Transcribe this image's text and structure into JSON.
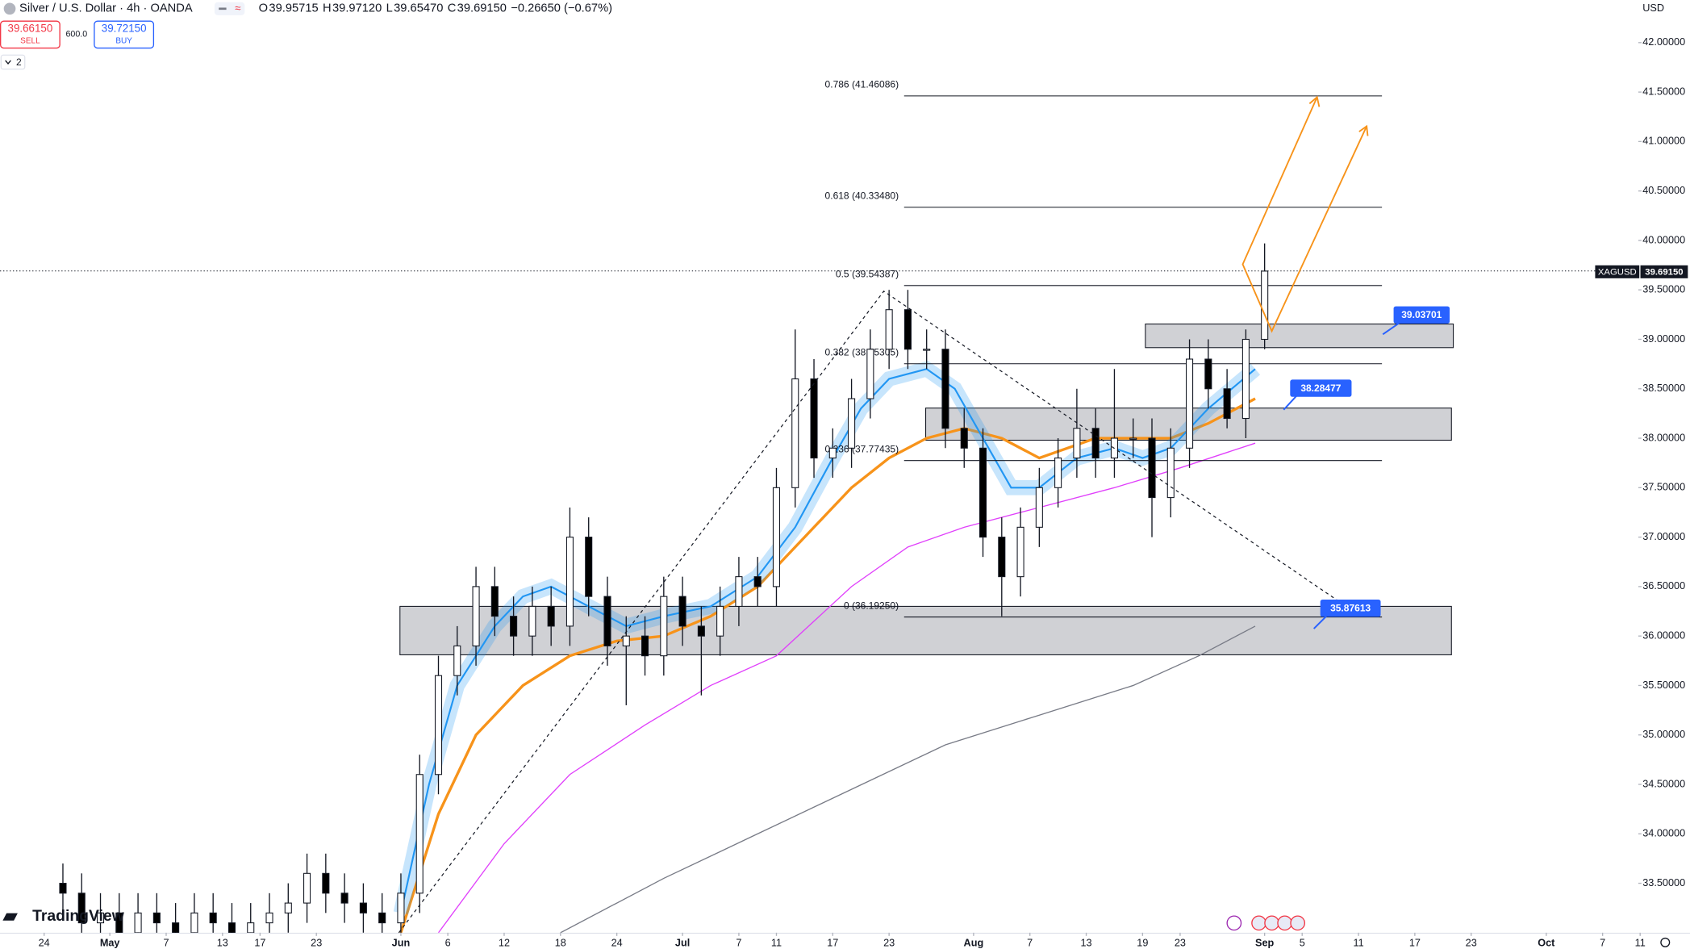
{
  "header": {
    "symbol": "Silver / U.S. Dollar · 4h · OANDA",
    "ohlc": [
      {
        "label": "O",
        "value": "39.95715"
      },
      {
        "label": "H",
        "value": "39.97120"
      },
      {
        "label": "L",
        "value": "39.65470"
      },
      {
        "label": "C",
        "value": "39.69150"
      }
    ],
    "change": "−0.26650 (−0.67%)",
    "sell_price": "39.66150",
    "sell": "SELL",
    "spread": "600.0",
    "buy_price": "39.72150",
    "buy": "BUY",
    "indicators_count": "2",
    "currency": "USD",
    "branding": "TradingView",
    "ticker": "XAGUSD",
    "last_price_label": "39.69150"
  },
  "chart_data": {
    "type": "candlestick",
    "xlim": [
      109.3,
      283.8
    ],
    "ylim": [
      33.0,
      42.43
    ],
    "xticks": [
      {
        "value": 114,
        "label": "24"
      },
      {
        "value": 121,
        "label": "May"
      },
      {
        "value": 127,
        "label": "7"
      },
      {
        "value": 133,
        "label": "13"
      },
      {
        "value": 137,
        "label": "17"
      },
      {
        "value": 143,
        "label": "23"
      },
      {
        "value": 152,
        "label": "Jun"
      },
      {
        "value": 157,
        "label": "6"
      },
      {
        "value": 163,
        "label": "12"
      },
      {
        "value": 169,
        "label": "18"
      },
      {
        "value": 175,
        "label": "24"
      },
      {
        "value": 182,
        "label": "Jul"
      },
      {
        "value": 188,
        "label": "7"
      },
      {
        "value": 192,
        "label": "11"
      },
      {
        "value": 198,
        "label": "17"
      },
      {
        "value": 204,
        "label": "23"
      },
      {
        "value": 213,
        "label": "Aug"
      },
      {
        "value": 219,
        "label": "7"
      },
      {
        "value": 225,
        "label": "13"
      },
      {
        "value": 231,
        "label": "19"
      },
      {
        "value": 235,
        "label": "23"
      },
      {
        "value": 244,
        "label": "Sep"
      },
      {
        "value": 248,
        "label": "5"
      },
      {
        "value": 254,
        "label": "11"
      },
      {
        "value": 260,
        "label": "17"
      },
      {
        "value": 266,
        "label": "23"
      },
      {
        "value": 274,
        "label": "Oct"
      },
      {
        "value": 280,
        "label": "7"
      },
      {
        "value": 284,
        "label": "11"
      }
    ],
    "yticks": [
      {
        "value": 42.0,
        "label": "42.00000"
      },
      {
        "value": 41.5,
        "label": "41.50000"
      },
      {
        "value": 41.0,
        "label": "41.00000"
      },
      {
        "value": 40.5,
        "label": "40.50000"
      },
      {
        "value": 40.0,
        "label": "40.00000"
      },
      {
        "value": 39.5,
        "label": "39.50000"
      },
      {
        "value": 39.0,
        "label": "39.00000"
      },
      {
        "value": 38.5,
        "label": "38.50000"
      },
      {
        "value": 38.0,
        "label": "38.00000"
      },
      {
        "value": 37.5,
        "label": "37.50000"
      },
      {
        "value": 37.0,
        "label": "37.00000"
      },
      {
        "value": 36.5,
        "label": "36.50000"
      },
      {
        "value": 36.0,
        "label": "36.00000"
      },
      {
        "value": 35.5,
        "label": "35.50000"
      },
      {
        "value": 35.0,
        "label": "35.00000"
      },
      {
        "value": 34.5,
        "label": "34.50000"
      },
      {
        "value": 34.0,
        "label": "34.00000"
      },
      {
        "value": 33.5,
        "label": "33.50000"
      }
    ],
    "last_price": 39.6915,
    "up_color": "#ffffff",
    "down_color": "#000000",
    "x": [
      116,
      118,
      120,
      122,
      124,
      126,
      128,
      130,
      132,
      134,
      136,
      138,
      140,
      142,
      144,
      146,
      148,
      150,
      152,
      154,
      156,
      158,
      160,
      162,
      164,
      166,
      168,
      170,
      172,
      174,
      176,
      178,
      180,
      182,
      184,
      186,
      188,
      190,
      192,
      194,
      196,
      198,
      200,
      202,
      204,
      206,
      208,
      210,
      212,
      214,
      216,
      218,
      220,
      222,
      224,
      226,
      228,
      230,
      232,
      234,
      236,
      238,
      240,
      242,
      244
    ],
    "open": [
      33.5,
      33.4,
      33.1,
      33.2,
      33.0,
      33.2,
      33.1,
      33.0,
      33.2,
      33.1,
      33.0,
      33.1,
      33.2,
      33.3,
      33.6,
      33.4,
      33.3,
      33.2,
      33.1,
      33.4,
      34.6,
      35.6,
      35.9,
      36.5,
      36.2,
      36.0,
      36.3,
      36.1,
      37.0,
      36.4,
      35.9,
      36.0,
      35.8,
      36.4,
      36.1,
      36.0,
      36.3,
      36.6,
      36.5,
      37.5,
      38.6,
      37.8,
      37.9,
      38.4,
      38.9,
      39.3,
      38.9,
      38.9,
      38.1,
      37.9,
      37.0,
      36.6,
      37.1,
      37.5,
      37.8,
      38.1,
      37.8,
      38.0,
      38.0,
      37.4,
      37.9,
      38.8,
      38.5,
      38.2,
      39.0
    ],
    "high": [
      33.7,
      33.6,
      33.4,
      33.4,
      33.4,
      33.4,
      33.3,
      33.4,
      33.4,
      33.3,
      33.3,
      33.4,
      33.5,
      33.8,
      33.8,
      33.6,
      33.5,
      33.4,
      33.6,
      34.8,
      35.8,
      36.1,
      36.7,
      36.7,
      36.4,
      36.5,
      36.5,
      37.3,
      37.2,
      36.6,
      36.2,
      36.2,
      36.6,
      36.6,
      36.3,
      36.5,
      36.8,
      36.8,
      37.7,
      39.1,
      38.8,
      38.1,
      38.6,
      39.1,
      39.5,
      39.5,
      39.1,
      39.1,
      38.3,
      38.1,
      37.2,
      37.3,
      37.7,
      38.0,
      38.5,
      38.3,
      38.7,
      38.2,
      38.2,
      38.1,
      39.0,
      39.0,
      38.7,
      39.1,
      39.97
    ],
    "low": [
      33.2,
      32.9,
      32.9,
      32.8,
      32.8,
      32.9,
      32.8,
      32.8,
      32.9,
      32.8,
      32.8,
      32.9,
      33.0,
      33.1,
      33.2,
      33.1,
      33.0,
      32.9,
      32.9,
      33.2,
      34.4,
      35.4,
      35.7,
      36.0,
      35.8,
      35.8,
      35.9,
      35.9,
      36.2,
      35.7,
      35.3,
      35.6,
      35.6,
      35.9,
      35.4,
      35.8,
      36.1,
      36.3,
      36.3,
      37.3,
      37.6,
      37.6,
      37.7,
      38.2,
      38.7,
      38.7,
      38.7,
      37.9,
      37.7,
      36.8,
      36.2,
      36.4,
      36.9,
      37.3,
      37.6,
      37.6,
      37.6,
      37.8,
      37.0,
      37.2,
      37.7,
      38.3,
      38.1,
      38.0,
      38.9
    ],
    "close": [
      33.4,
      33.1,
      33.2,
      33.0,
      33.2,
      33.1,
      33.0,
      33.2,
      33.1,
      33.0,
      33.1,
      33.2,
      33.3,
      33.6,
      33.4,
      33.3,
      33.2,
      33.1,
      33.4,
      34.6,
      35.6,
      35.9,
      36.5,
      36.2,
      36.0,
      36.3,
      36.1,
      37.0,
      36.4,
      35.9,
      36.0,
      35.8,
      36.4,
      36.1,
      36.0,
      36.3,
      36.6,
      36.5,
      37.5,
      38.6,
      37.8,
      37.9,
      38.4,
      38.9,
      39.3,
      38.9,
      38.9,
      38.1,
      37.9,
      37.0,
      36.6,
      37.1,
      37.5,
      37.8,
      38.1,
      37.8,
      38.0,
      38.0,
      37.4,
      37.9,
      38.8,
      38.5,
      38.2,
      39.0,
      39.69
    ],
    "overlays": [
      {
        "color": "#787b86",
        "x": [
          169,
          180,
          190,
          200,
          210,
          220,
          230,
          237,
          243
        ],
        "values": [
          33.0,
          33.55,
          34.0,
          34.45,
          34.9,
          35.2,
          35.5,
          35.8,
          36.1
        ]
      },
      {
        "color": "#e040fb",
        "x": [
          156,
          163,
          170,
          178,
          185,
          192,
          200,
          206,
          212,
          220,
          228,
          235,
          243
        ],
        "values": [
          33.0,
          33.9,
          34.6,
          35.1,
          35.5,
          35.8,
          36.5,
          36.9,
          37.1,
          37.3,
          37.5,
          37.7,
          37.95
        ]
      },
      {
        "color": "#f7931a",
        "x": [
          152,
          156,
          160,
          165,
          170,
          175,
          180,
          185,
          190,
          195,
          200,
          204,
          208,
          212,
          216,
          220,
          226,
          230,
          234,
          238,
          243
        ],
        "values": [
          33.0,
          34.2,
          35.0,
          35.5,
          35.8,
          35.95,
          36.0,
          36.2,
          36.5,
          37.0,
          37.5,
          37.8,
          38.0,
          38.1,
          38.0,
          37.8,
          38.0,
          38.0,
          38.0,
          38.15,
          38.4
        ]
      },
      {
        "color": "#2196f3",
        "x": [
          152,
          155,
          158,
          162,
          165,
          168,
          172,
          176,
          180,
          185,
          190,
          194,
          198,
          201,
          204,
          208,
          211,
          214,
          217,
          220,
          224,
          228,
          231,
          234,
          238,
          243
        ],
        "values": [
          33.2,
          34.5,
          35.5,
          36.1,
          36.4,
          36.5,
          36.3,
          36.1,
          36.2,
          36.3,
          36.6,
          37.1,
          37.8,
          38.3,
          38.6,
          38.7,
          38.5,
          38.0,
          37.5,
          37.5,
          37.8,
          37.9,
          37.8,
          37.9,
          38.3,
          38.7
        ]
      }
    ],
    "fib_x": [
      205.6,
      256.5
    ],
    "fib_levels": [
      {
        "label": "0.786 (41.46086)",
        "value": 41.46086
      },
      {
        "label": "0.618 (40.33480)",
        "value": 40.3348
      },
      {
        "label": "0.5 (39.54387)",
        "value": 39.54387
      },
      {
        "label": "0.382 (38.75305)",
        "value": 38.75305
      },
      {
        "label": "0.236 (37.77435)",
        "value": 37.77435
      },
      {
        "label": "0 (36.19250)",
        "value": 36.1925
      }
    ],
    "zones": [
      {
        "x": [
          231.3,
          264.1
        ],
        "range": [
          38.916,
          39.155
        ],
        "tag": "39.03701"
      },
      {
        "x": [
          207.9,
          263.9
        ],
        "range": [
          37.98,
          38.305
        ],
        "tag": "38.28477"
      },
      {
        "x": [
          151.9,
          263.9
        ],
        "range": [
          35.81,
          36.3
        ],
        "tag": "35.87613"
      }
    ]
  }
}
